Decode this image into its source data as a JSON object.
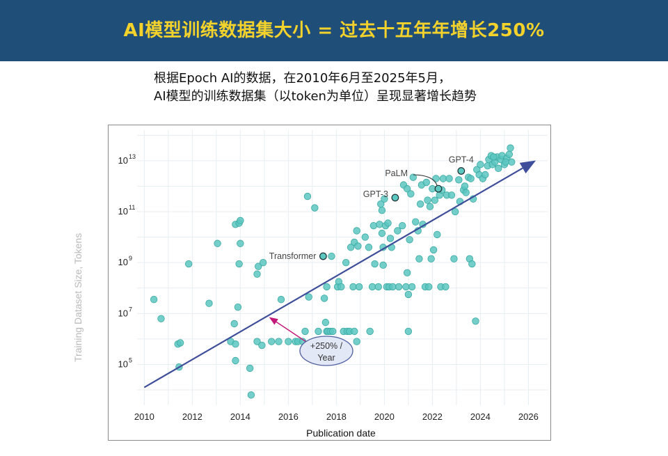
{
  "banner": {
    "title": "AI模型训练数据集大小 = 过去十五年年增长250%"
  },
  "subtitle": {
    "line1": "根据Epoch AI的数据，在2010年6月至2025年5月，",
    "line2": "AI模型的训练数据集（以token为单位）呈现显著增长趋势"
  },
  "colors": {
    "banner_bg": "#1f4e79",
    "banner_text": "#f3d22b",
    "point": "#5cc6c0",
    "trend": "#3f4e9a",
    "annotation": "#c2187a"
  },
  "chart_data": {
    "type": "scatter",
    "xlabel": "Publication date",
    "ylabel": "Training Dataset Size, Tokens",
    "xlim": [
      2009.7,
      2026.8
    ],
    "ylim": [
      3.4,
      14.2
    ],
    "y_scale": "log10",
    "x_ticks": [
      2010,
      2012,
      2014,
      2016,
      2018,
      2020,
      2022,
      2024,
      2026
    ],
    "y_ticks": [
      {
        "exp": 5,
        "base": "10",
        "sup": "5"
      },
      {
        "exp": 7,
        "base": "10",
        "sup": "7"
      },
      {
        "exp": 9,
        "base": "10",
        "sup": "9"
      },
      {
        "exp": 11,
        "base": "10",
        "sup": "11"
      },
      {
        "exp": 13,
        "base": "10",
        "sup": "13"
      }
    ],
    "grid": true,
    "trend": {
      "x0": 2010.0,
      "y0": 4.1,
      "x1": 2026.2,
      "y1": 12.95
    },
    "trend_label": {
      "line1": "+250% /",
      "line2": "Year"
    },
    "annotations": [
      {
        "label": "Transformer",
        "x": 2017.45,
        "y": 9.25
      },
      {
        "label": "GPT-3",
        "x": 2020.45,
        "y": 11.55
      },
      {
        "label": "PaLM",
        "x": 2022.25,
        "y": 11.9
      },
      {
        "label": "GPT-4",
        "x": 2023.2,
        "y": 12.6
      }
    ],
    "points": [
      [
        2010.4,
        7.55
      ],
      [
        2010.7,
        6.8
      ],
      [
        2011.4,
        5.8
      ],
      [
        2011.5,
        5.85
      ],
      [
        2011.45,
        4.9
      ],
      [
        2011.85,
        8.95
      ],
      [
        2012.7,
        7.4
      ],
      [
        2013.05,
        9.75
      ],
      [
        2013.6,
        5.9
      ],
      [
        2013.75,
        6.6
      ],
      [
        2013.8,
        5.8
      ],
      [
        2013.8,
        5.15
      ],
      [
        2013.8,
        10.5
      ],
      [
        2013.9,
        7.25
      ],
      [
        2013.95,
        8.95
      ],
      [
        2013.95,
        10.55
      ],
      [
        2014.0,
        10.65
      ],
      [
        2014.0,
        9.75
      ],
      [
        2014.4,
        4.85
      ],
      [
        2014.45,
        3.8
      ],
      [
        2014.7,
        5.9
      ],
      [
        2014.7,
        8.55
      ],
      [
        2014.75,
        8.85
      ],
      [
        2014.9,
        5.75
      ],
      [
        2014.95,
        9.0
      ],
      [
        2015.3,
        5.9
      ],
      [
        2015.6,
        5.9
      ],
      [
        2015.7,
        7.55
      ],
      [
        2016.0,
        5.9
      ],
      [
        2016.3,
        5.9
      ],
      [
        2016.4,
        5.9
      ],
      [
        2016.6,
        5.9
      ],
      [
        2016.7,
        6.3
      ],
      [
        2016.8,
        11.6
      ],
      [
        2016.85,
        7.65
      ],
      [
        2017.1,
        11.15
      ],
      [
        2017.2,
        5.9
      ],
      [
        2017.25,
        6.3
      ],
      [
        2017.4,
        5.9
      ],
      [
        2017.5,
        7.6
      ],
      [
        2017.55,
        6.65
      ],
      [
        2017.6,
        6.3
      ],
      [
        2017.6,
        8.05
      ],
      [
        2017.65,
        6.3
      ],
      [
        2017.75,
        6.3
      ],
      [
        2017.8,
        9.25
      ],
      [
        2017.85,
        6.3
      ],
      [
        2017.85,
        5.9
      ],
      [
        2018.05,
        8.05
      ],
      [
        2018.1,
        8.25
      ],
      [
        2018.2,
        8.05
      ],
      [
        2018.3,
        6.3
      ],
      [
        2018.4,
        9.0
      ],
      [
        2018.45,
        6.3
      ],
      [
        2018.55,
        6.3
      ],
      [
        2018.6,
        9.6
      ],
      [
        2018.7,
        8.05
      ],
      [
        2018.75,
        6.3
      ],
      [
        2018.75,
        9.8
      ],
      [
        2018.85,
        10.25
      ],
      [
        2018.85,
        5.9
      ],
      [
        2018.9,
        9.65
      ],
      [
        2018.95,
        8.05
      ],
      [
        2019.2,
        10.0
      ],
      [
        2019.35,
        9.6
      ],
      [
        2019.4,
        6.3
      ],
      [
        2019.5,
        8.05
      ],
      [
        2019.55,
        10.45
      ],
      [
        2019.6,
        8.95
      ],
      [
        2019.75,
        8.05
      ],
      [
        2019.8,
        10.5
      ],
      [
        2019.85,
        11.3
      ],
      [
        2019.9,
        11.05
      ],
      [
        2019.9,
        10.15
      ],
      [
        2019.95,
        9.6
      ],
      [
        2019.95,
        8.9
      ],
      [
        2020.0,
        11.5
      ],
      [
        2020.05,
        10.45
      ],
      [
        2020.1,
        8.05
      ],
      [
        2020.15,
        10.55
      ],
      [
        2020.2,
        8.05
      ],
      [
        2020.25,
        9.95
      ],
      [
        2020.3,
        9.6
      ],
      [
        2020.35,
        8.05
      ],
      [
        2020.45,
        11.55
      ],
      [
        2020.55,
        10.25
      ],
      [
        2020.6,
        8.05
      ],
      [
        2020.75,
        10.45
      ],
      [
        2020.8,
        12.05
      ],
      [
        2020.9,
        8.05
      ],
      [
        2020.95,
        8.6
      ],
      [
        2020.95,
        11.9
      ],
      [
        2021.0,
        7.75
      ],
      [
        2021.0,
        6.3
      ],
      [
        2021.05,
        9.9
      ],
      [
        2021.1,
        11.7
      ],
      [
        2021.15,
        8.05
      ],
      [
        2021.2,
        12.35
      ],
      [
        2021.3,
        10.6
      ],
      [
        2021.4,
        10.25
      ],
      [
        2021.45,
        9.15
      ],
      [
        2021.5,
        11.3
      ],
      [
        2021.55,
        12.05
      ],
      [
        2021.6,
        10.5
      ],
      [
        2021.7,
        8.05
      ],
      [
        2021.75,
        12.15
      ],
      [
        2021.8,
        11.45
      ],
      [
        2021.85,
        8.05
      ],
      [
        2021.9,
        11.2
      ],
      [
        2021.95,
        9.15
      ],
      [
        2022.0,
        11.9
      ],
      [
        2022.05,
        9.5
      ],
      [
        2022.1,
        11.45
      ],
      [
        2022.15,
        12.3
      ],
      [
        2022.2,
        10.1
      ],
      [
        2022.25,
        11.9
      ],
      [
        2022.3,
        11.65
      ],
      [
        2022.35,
        8.05
      ],
      [
        2022.4,
        11.85
      ],
      [
        2022.45,
        12.3
      ],
      [
        2022.55,
        8.05
      ],
      [
        2022.6,
        11.65
      ],
      [
        2022.7,
        12.3
      ],
      [
        2022.8,
        11.65
      ],
      [
        2022.9,
        9.15
      ],
      [
        2022.95,
        11.0
      ],
      [
        2023.1,
        12.25
      ],
      [
        2023.15,
        11.4
      ],
      [
        2023.2,
        12.6
      ],
      [
        2023.3,
        11.85
      ],
      [
        2023.35,
        12.0
      ],
      [
        2023.4,
        11.75
      ],
      [
        2023.5,
        12.35
      ],
      [
        2023.55,
        9.15
      ],
      [
        2023.6,
        12.3
      ],
      [
        2023.65,
        8.95
      ],
      [
        2023.7,
        11.5
      ],
      [
        2023.8,
        6.7
      ],
      [
        2023.85,
        12.65
      ],
      [
        2023.95,
        12.45
      ],
      [
        2024.0,
        12.85
      ],
      [
        2024.1,
        12.3
      ],
      [
        2024.2,
        12.45
      ],
      [
        2024.3,
        12.8
      ],
      [
        2024.35,
        13.05
      ],
      [
        2024.45,
        13.2
      ],
      [
        2024.5,
        12.85
      ],
      [
        2024.6,
        12.95
      ],
      [
        2024.7,
        13.15
      ],
      [
        2024.75,
        12.7
      ],
      [
        2024.85,
        13.05
      ],
      [
        2024.9,
        13.2
      ],
      [
        2025.0,
        12.85
      ],
      [
        2025.1,
        13.1
      ],
      [
        2025.2,
        13.25
      ],
      [
        2025.25,
        13.5
      ],
      [
        2025.3,
        12.95
      ],
      [
        2024.55,
        13.15
      ],
      [
        2025.05,
        12.95
      ]
    ]
  }
}
